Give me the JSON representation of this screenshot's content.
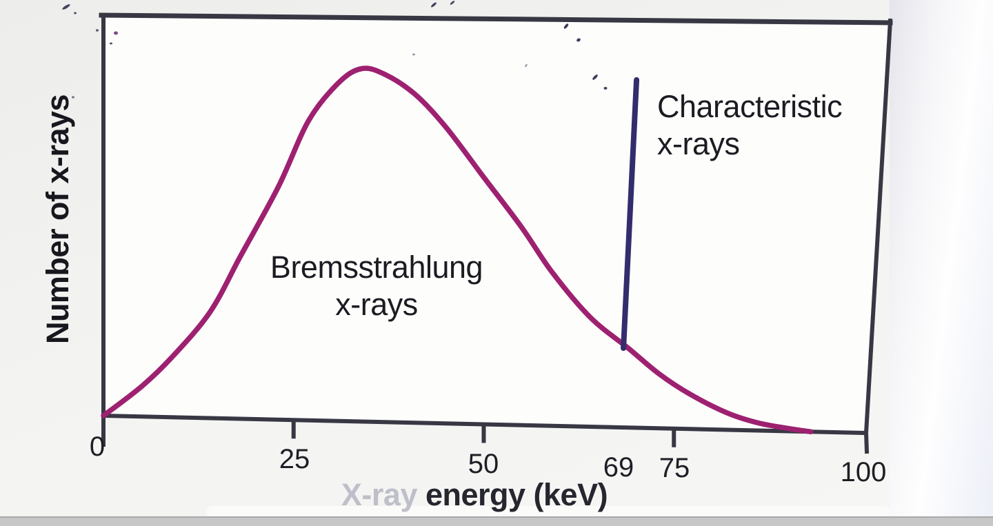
{
  "chart_data": {
    "type": "line",
    "title": "",
    "xlabel": "X-ray energy (keV)",
    "ylabel": "Number of x-rays",
    "xlim": [
      0,
      100
    ],
    "ylim": [
      0,
      1
    ],
    "grid": false,
    "legend_position": "none",
    "x_ticks": [
      0,
      25,
      50,
      75,
      100
    ],
    "x_tick_labels": [
      "0",
      "25",
      "50",
      "69",
      "75",
      "100"
    ],
    "x_tick_label_positions": [
      0,
      25,
      50,
      69,
      75,
      100
    ],
    "series": [
      {
        "name": "Bremsstrahlung x-rays",
        "style": "smooth-curve",
        "color": "#9d2170",
        "points": [
          [
            0,
            0
          ],
          [
            5,
            0.085
          ],
          [
            9,
            0.17
          ],
          [
            14,
            0.3
          ],
          [
            18,
            0.46
          ],
          [
            23,
            0.66
          ],
          [
            27,
            0.85
          ],
          [
            31,
            0.96
          ],
          [
            34,
            1.0
          ],
          [
            37,
            0.985
          ],
          [
            41,
            0.93
          ],
          [
            45,
            0.84
          ],
          [
            50,
            0.7
          ],
          [
            55,
            0.56
          ],
          [
            59,
            0.435
          ],
          [
            64,
            0.31
          ],
          [
            69,
            0.225
          ],
          [
            73,
            0.155
          ],
          [
            77,
            0.1
          ],
          [
            82,
            0.048
          ],
          [
            86,
            0.022
          ],
          [
            90,
            0.008
          ],
          [
            93,
            0
          ]
        ]
      },
      {
        "name": "Characteristic x-rays",
        "style": "vertical-line",
        "color": "#332d6e",
        "x": 69,
        "y_top": 0.985,
        "y_bottom": 0.225
      }
    ],
    "annotations": [
      {
        "text": "Bremsstrahlung\nx-rays",
        "x_kev": 36,
        "anchor": "curve-left-of-center"
      },
      {
        "text": "Characteristic\nx-rays",
        "x_kev": 73,
        "anchor": "right-of-vertical-line"
      }
    ]
  },
  "labels": {
    "xlabel_faded": "X-ray",
    "xlabel_main": "energy (keV)"
  },
  "colors": {
    "axis": "#383844",
    "curve": "#9d2170",
    "characteristic_line": "#332d6e",
    "text": "#1b1b22",
    "faded_text": "#b5b6c1",
    "paper": "#f1f1ef"
  }
}
